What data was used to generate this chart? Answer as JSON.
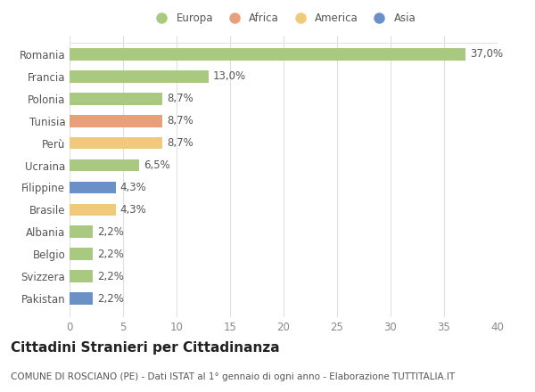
{
  "categories": [
    "Romania",
    "Francia",
    "Polonia",
    "Tunisia",
    "Perù",
    "Ucraina",
    "Filippine",
    "Brasile",
    "Albania",
    "Belgio",
    "Svizzera",
    "Pakistan"
  ],
  "values": [
    37.0,
    13.0,
    8.7,
    8.7,
    8.7,
    6.5,
    4.3,
    4.3,
    2.2,
    2.2,
    2.2,
    2.2
  ],
  "labels": [
    "37,0%",
    "13,0%",
    "8,7%",
    "8,7%",
    "8,7%",
    "6,5%",
    "4,3%",
    "4,3%",
    "2,2%",
    "2,2%",
    "2,2%",
    "2,2%"
  ],
  "colors": [
    "#a8c97f",
    "#a8c97f",
    "#a8c97f",
    "#e8a07a",
    "#f0c97a",
    "#a8c97f",
    "#6b8fc7",
    "#f0c97a",
    "#a8c97f",
    "#a8c97f",
    "#a8c97f",
    "#6b8fc7"
  ],
  "legend": [
    {
      "label": "Europa",
      "color": "#a8c97f"
    },
    {
      "label": "Africa",
      "color": "#e8a07a"
    },
    {
      "label": "America",
      "color": "#f0c97a"
    },
    {
      "label": "Asia",
      "color": "#6b8fc7"
    }
  ],
  "title": "Cittadini Stranieri per Cittadinanza",
  "subtitle": "COMUNE DI ROSCIANO (PE) - Dati ISTAT al 1° gennaio di ogni anno - Elaborazione TUTTITALIA.IT",
  "xlim": [
    0,
    40
  ],
  "xticks": [
    0,
    5,
    10,
    15,
    20,
    25,
    30,
    35,
    40
  ],
  "background_color": "#ffffff",
  "grid_color": "#e0e0e0",
  "bar_height": 0.55,
  "label_fontsize": 8.5,
  "tick_fontsize": 8.5,
  "title_fontsize": 11,
  "subtitle_fontsize": 7.5
}
